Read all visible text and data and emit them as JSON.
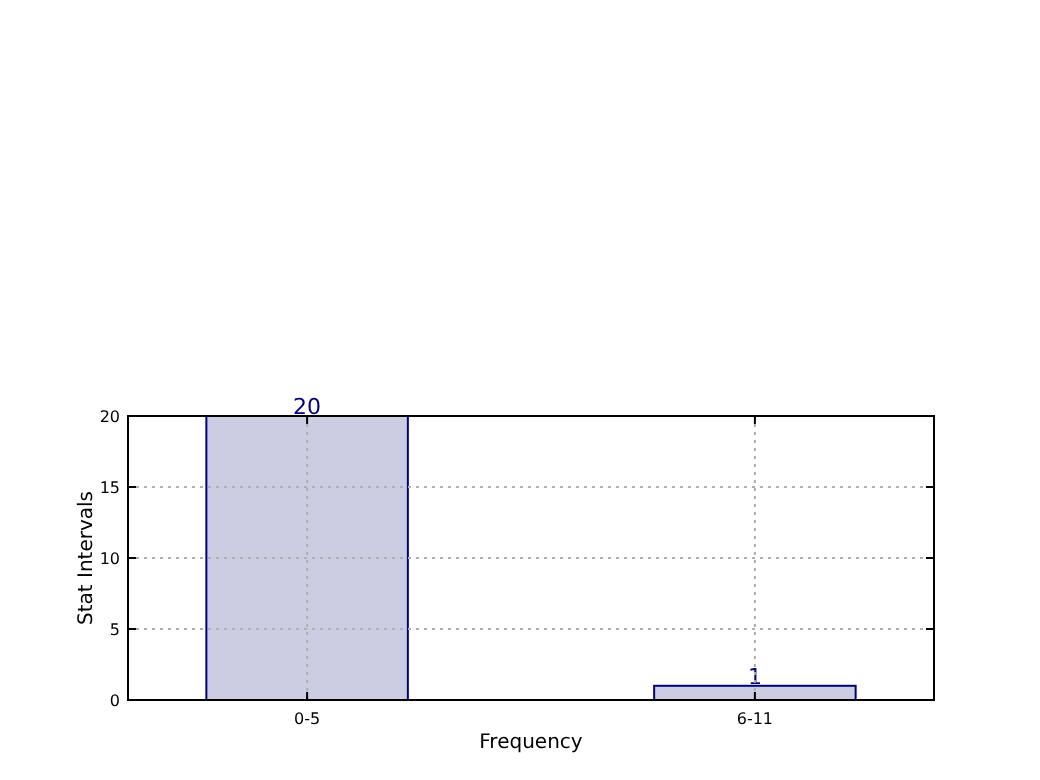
{
  "chart_data": {
    "type": "bar",
    "xlabel": "Frequency",
    "ylabel": "Stat Intervals",
    "categories": [
      "0-5",
      "6-11"
    ],
    "series": [
      {
        "color": "#ccccE3",
        "values": [
          20,
          1
        ]
      }
    ],
    "ylim": [
      0,
      20
    ],
    "yticks": [
      0,
      5,
      10,
      15,
      20
    ],
    "grid": true,
    "data_labels": true
  }
}
